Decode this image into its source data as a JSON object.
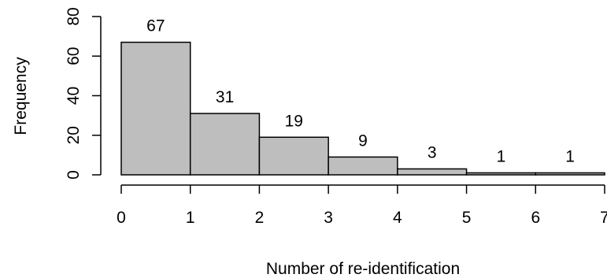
{
  "chart_data": {
    "type": "bar",
    "subtype": "histogram",
    "title": "",
    "xlabel": "Number of re-identification",
    "ylabel": "Frequency",
    "bins": [
      {
        "x0": 0,
        "x1": 1,
        "value": 67,
        "label": "67"
      },
      {
        "x0": 1,
        "x1": 2,
        "value": 31,
        "label": "31"
      },
      {
        "x0": 2,
        "x1": 3,
        "value": 19,
        "label": "19"
      },
      {
        "x0": 3,
        "x1": 4,
        "value": 9,
        "label": "9"
      },
      {
        "x0": 4,
        "x1": 5,
        "value": 3,
        "label": "3"
      },
      {
        "x0": 5,
        "x1": 6,
        "value": 1,
        "label": "1"
      },
      {
        "x0": 6,
        "x1": 7,
        "value": 1,
        "label": "1"
      }
    ],
    "xlim": [
      0,
      7
    ],
    "ylim": [
      0,
      80
    ],
    "xticks": [
      0,
      1,
      2,
      3,
      4,
      5,
      6,
      7
    ],
    "yticks": [
      0,
      20,
      40,
      60,
      80
    ],
    "xtick_labels": [
      "0",
      "1",
      "2",
      "3",
      "4",
      "5",
      "6",
      "7"
    ],
    "ytick_labels": [
      "0",
      "20",
      "40",
      "60",
      "80"
    ],
    "grid": false,
    "legend": "none",
    "colors": {
      "bar_fill": "#bebebe",
      "bar_stroke": "#000000"
    }
  }
}
